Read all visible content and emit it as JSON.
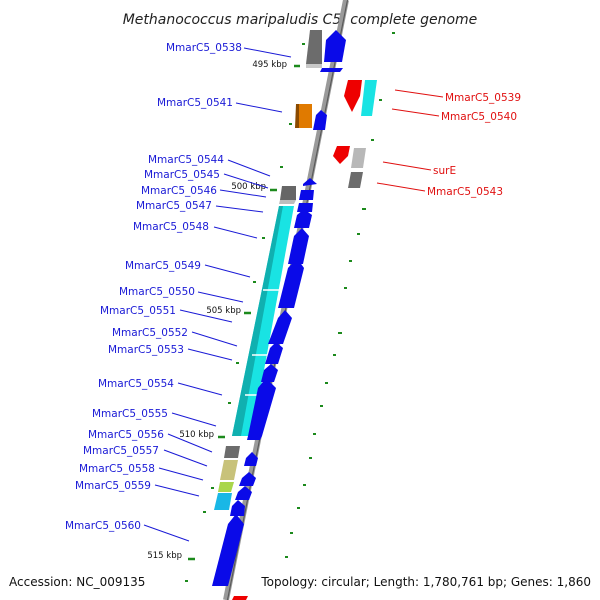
{
  "title": "Methanococcus maripaludis C5, complete genome",
  "accession_text": "Accession: NC_009135",
  "topology_text": "Topology: circular; Length: 1,780,761 bp; Genes: 1,860",
  "colors": {
    "blue_label": "#1a1ad6",
    "red_label": "#e01010",
    "forward": "#0a0ae8",
    "reverse": "#ee0000",
    "backbone": "#8c8c8c"
  },
  "kbp_marks": [
    "495 kbp",
    "500 kbp",
    "505 kbp",
    "510 kbp",
    "515 kbp"
  ],
  "genes_forward": [
    {
      "id": "MmarC5_0538",
      "label": "MmarC5_0538"
    },
    {
      "id": "MmarC5_0541",
      "label": "MmarC5_0541"
    },
    {
      "id": "MmarC5_0544",
      "label": "MmarC5_0544"
    },
    {
      "id": "MmarC5_0545",
      "label": "MmarC5_0545"
    },
    {
      "id": "MmarC5_0546",
      "label": "MmarC5_0546"
    },
    {
      "id": "MmarC5_0547",
      "label": "MmarC5_0547"
    },
    {
      "id": "MmarC5_0548",
      "label": "MmarC5_0548"
    },
    {
      "id": "MmarC5_0549",
      "label": "MmarC5_0549"
    },
    {
      "id": "MmarC5_0550",
      "label": "MmarC5_0550"
    },
    {
      "id": "MmarC5_0551",
      "label": "MmarC5_0551"
    },
    {
      "id": "MmarC5_0552",
      "label": "MmarC5_0552"
    },
    {
      "id": "MmarC5_0553",
      "label": "MmarC5_0553"
    },
    {
      "id": "MmarC5_0554",
      "label": "MmarC5_0554"
    },
    {
      "id": "MmarC5_0555",
      "label": "MmarC5_0555"
    },
    {
      "id": "MmarC5_0556",
      "label": "MmarC5_0556"
    },
    {
      "id": "MmarC5_0557",
      "label": "MmarC5_0557"
    },
    {
      "id": "MmarC5_0558",
      "label": "MmarC5_0558"
    },
    {
      "id": "MmarC5_0559",
      "label": "MmarC5_0559"
    },
    {
      "id": "MmarC5_0560",
      "label": "MmarC5_0560"
    }
  ],
  "genes_reverse": [
    {
      "id": "MmarC5_0539",
      "label": "MmarC5_0539"
    },
    {
      "id": "MmarC5_0540",
      "label": "MmarC5_0540"
    },
    {
      "id": "surE",
      "label": "surE"
    },
    {
      "id": "MmarC5_0543",
      "label": "MmarC5_0543"
    }
  ]
}
